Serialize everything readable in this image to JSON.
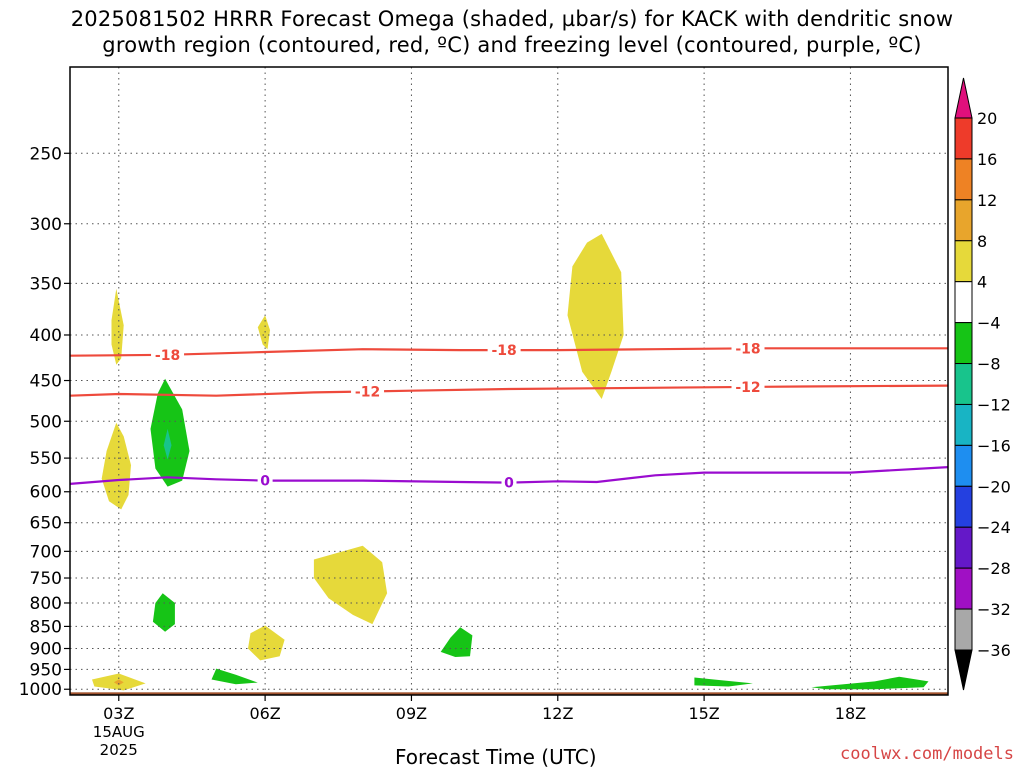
{
  "title": {
    "line1": "2025081502 HRRR Forecast Omega (shaded, µbar/s) for KACK with dendritic snow",
    "line2": "growth region (contoured, red, ºC) and freezing level (contoured, purple, ºC)"
  },
  "credit": "coolwx.com/models",
  "chart_data": {
    "type": "heatmap",
    "subtype": "time-height cross section",
    "xlabel": "Forecast Time (UTC)",
    "ylabel": "",
    "x_range_hours": [
      2.0,
      20.0
    ],
    "x_ticks": [
      {
        "hour": 3,
        "label": "03Z",
        "sub1": "15AUG",
        "sub2": "2025"
      },
      {
        "hour": 6,
        "label": "06Z"
      },
      {
        "hour": 9,
        "label": "09Z"
      },
      {
        "hour": 12,
        "label": "12Z"
      },
      {
        "hour": 15,
        "label": "15Z"
      },
      {
        "hour": 18,
        "label": "18Z"
      }
    ],
    "y_scale": "log pressure (inverted)",
    "y_range_hpa": [
      1015,
      200
    ],
    "y_ticks": [
      250,
      300,
      350,
      400,
      450,
      500,
      550,
      600,
      650,
      700,
      750,
      800,
      850,
      900,
      950,
      1000
    ],
    "grid": "dotted",
    "colorbar": {
      "placement": "right",
      "labels": [
        "20",
        "16",
        "12",
        "8",
        "4",
        "−4",
        "−8",
        "−12",
        "−16",
        "−20",
        "−24",
        "−28",
        "−32",
        "−36"
      ],
      "bins": [
        {
          "range": "above 20",
          "color": "#e0107c"
        },
        {
          "range": "16 to 20",
          "color": "#ee3b2a"
        },
        {
          "range": "12 to 16",
          "color": "#ee8224"
        },
        {
          "range": "8 to 12",
          "color": "#e8a52c"
        },
        {
          "range": "4 to 8",
          "color": "#e6d93a"
        },
        {
          "range": "-4 to 4",
          "color": "#ffffff"
        },
        {
          "range": "-8 to -4",
          "color": "#16c416"
        },
        {
          "range": "-12 to -8",
          "color": "#18c48c"
        },
        {
          "range": "-16 to -12",
          "color": "#18b4c4"
        },
        {
          "range": "-20 to -16",
          "color": "#1e8ef0"
        },
        {
          "range": "-24 to -20",
          "color": "#2440e0"
        },
        {
          "range": "-28 to -24",
          "color": "#6418c8"
        },
        {
          "range": "-32 to -28",
          "color": "#a010c4"
        },
        {
          "range": "-36 to -32",
          "color": "#a8a8a8"
        },
        {
          "range": "below -36",
          "color": "#000000"
        }
      ]
    },
    "contours": [
      {
        "label": "-18",
        "color": "#ee4a3c",
        "label_hours": [
          4.0,
          10.9,
          15.9
        ],
        "points": [
          [
            2.0,
            422
          ],
          [
            4,
            421
          ],
          [
            6,
            418
          ],
          [
            8,
            415
          ],
          [
            10,
            416
          ],
          [
            12,
            416
          ],
          [
            14,
            415
          ],
          [
            16,
            414
          ],
          [
            18,
            414
          ],
          [
            20,
            414
          ]
        ]
      },
      {
        "label": "-12",
        "color": "#ee4a3c",
        "label_hours": [
          8.1,
          15.9
        ],
        "points": [
          [
            2.0,
            468
          ],
          [
            3,
            466
          ],
          [
            5,
            468
          ],
          [
            7,
            464
          ],
          [
            9,
            462
          ],
          [
            11,
            460
          ],
          [
            13,
            459
          ],
          [
            15,
            458
          ],
          [
            17,
            457
          ],
          [
            20,
            456
          ]
        ]
      },
      {
        "label": "0",
        "color": "#9a0ccf",
        "label_hours": [
          6.0,
          11.0
        ],
        "points": [
          [
            2.0,
            588
          ],
          [
            3,
            582
          ],
          [
            4,
            578
          ],
          [
            5,
            581
          ],
          [
            6,
            583
          ],
          [
            8,
            583
          ],
          [
            10,
            585
          ],
          [
            11,
            586
          ],
          [
            12,
            584
          ],
          [
            12.8,
            585
          ],
          [
            14,
            575
          ],
          [
            15,
            571
          ],
          [
            16,
            571
          ],
          [
            18,
            571
          ],
          [
            20,
            563
          ]
        ]
      }
    ],
    "shaded_regions": [
      {
        "omega_bin": "4 to 8",
        "color": "#e6d93a",
        "points": [
          [
            2.95,
            355
          ],
          [
            3.1,
            390
          ],
          [
            3.05,
            425
          ],
          [
            2.95,
            432
          ],
          [
            2.85,
            410
          ],
          [
            2.85,
            385
          ]
        ]
      },
      {
        "omega_bin": "4 to 8",
        "color": "#e6d93a",
        "points": [
          [
            2.95,
            502
          ],
          [
            3.1,
            520
          ],
          [
            3.25,
            560
          ],
          [
            3.2,
            605
          ],
          [
            3.05,
            628
          ],
          [
            2.8,
            615
          ],
          [
            2.65,
            580
          ],
          [
            2.75,
            540
          ]
        ]
      },
      {
        "omega_bin": "4 to 8",
        "color": "#e6d93a",
        "points": [
          [
            6.0,
            380
          ],
          [
            6.1,
            395
          ],
          [
            6.05,
            415
          ],
          [
            5.95,
            410
          ],
          [
            5.85,
            392
          ]
        ]
      },
      {
        "omega_bin": "4 to 8",
        "color": "#e6d93a",
        "points": [
          [
            12.9,
            308
          ],
          [
            13.3,
            340
          ],
          [
            13.35,
            400
          ],
          [
            13.1,
            440
          ],
          [
            12.9,
            472
          ],
          [
            12.5,
            440
          ],
          [
            12.2,
            380
          ],
          [
            12.3,
            335
          ],
          [
            12.6,
            315
          ]
        ]
      },
      {
        "omega_bin": "4 to 8",
        "color": "#e6d93a",
        "points": [
          [
            7.0,
            715
          ],
          [
            8.0,
            690
          ],
          [
            8.4,
            720
          ],
          [
            8.5,
            780
          ],
          [
            8.2,
            845
          ],
          [
            7.8,
            825
          ],
          [
            7.3,
            790
          ],
          [
            7.0,
            750
          ]
        ]
      },
      {
        "omega_bin": "4 to 8",
        "color": "#e6d93a",
        "points": [
          [
            5.7,
            865
          ],
          [
            6.0,
            848
          ],
          [
            6.4,
            880
          ],
          [
            6.3,
            918
          ],
          [
            5.9,
            928
          ],
          [
            5.65,
            900
          ]
        ]
      },
      {
        "omega_bin": "4 to 8",
        "color": "#e6d93a",
        "points": [
          [
            2.45,
            975
          ],
          [
            3.0,
            960
          ],
          [
            3.55,
            985
          ],
          [
            3.1,
            1003
          ],
          [
            2.5,
            993
          ]
        ]
      },
      {
        "omega_bin": "8 to 12",
        "color": "#e8a52c",
        "points": [
          [
            2.9,
            982
          ],
          [
            3.0,
            975
          ],
          [
            3.1,
            982
          ],
          [
            3.0,
            990
          ]
        ]
      },
      {
        "omega_bin": "-8 to -4",
        "color": "#16c416",
        "points": [
          [
            3.95,
            448
          ],
          [
            4.3,
            485
          ],
          [
            4.45,
            540
          ],
          [
            4.3,
            583
          ],
          [
            4.0,
            592
          ],
          [
            3.75,
            565
          ],
          [
            3.65,
            510
          ],
          [
            3.8,
            465
          ]
        ]
      },
      {
        "omega_bin": "-12 to -8",
        "color": "#18c48c",
        "points": [
          [
            4.0,
            510
          ],
          [
            4.08,
            532
          ],
          [
            4.0,
            552
          ],
          [
            3.92,
            532
          ]
        ]
      },
      {
        "omega_bin": "-8 to -4",
        "color": "#16c416",
        "points": [
          [
            3.9,
            780
          ],
          [
            4.15,
            800
          ],
          [
            4.15,
            845
          ],
          [
            3.95,
            862
          ],
          [
            3.7,
            840
          ],
          [
            3.75,
            800
          ]
        ]
      },
      {
        "omega_bin": "-8 to -4",
        "color": "#16c416",
        "points": [
          [
            5.0,
            948
          ],
          [
            5.4,
            963
          ],
          [
            5.85,
            983
          ],
          [
            5.4,
            987
          ],
          [
            4.9,
            975
          ]
        ]
      },
      {
        "omega_bin": "-8 to -4",
        "color": "#16c416",
        "points": [
          [
            10.0,
            852
          ],
          [
            10.25,
            870
          ],
          [
            10.2,
            918
          ],
          [
            9.9,
            920
          ],
          [
            9.6,
            908
          ],
          [
            9.8,
            875
          ]
        ]
      },
      {
        "omega_bin": "-8 to -4",
        "color": "#16c416",
        "points": [
          [
            14.8,
            970
          ],
          [
            15.2,
            975
          ],
          [
            16.0,
            985
          ],
          [
            15.5,
            993
          ],
          [
            14.8,
            990
          ]
        ]
      },
      {
        "omega_bin": "-8 to -4",
        "color": "#16c416",
        "points": [
          [
            17.2,
            995
          ],
          [
            18.5,
            980
          ],
          [
            19.0,
            968
          ],
          [
            19.6,
            980
          ],
          [
            19.5,
            995
          ],
          [
            18.5,
            1000
          ],
          [
            17.5,
            1000
          ]
        ]
      }
    ],
    "ground": {
      "color": "#a0522d",
      "top_hpa": 1008
    }
  }
}
